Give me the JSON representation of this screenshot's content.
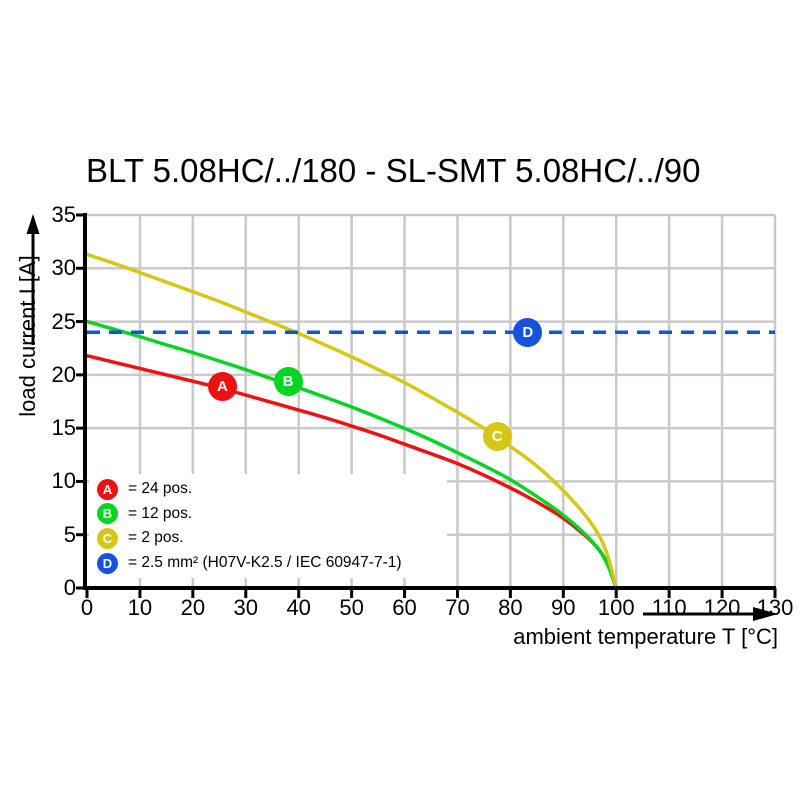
{
  "title": "BLT 5.08HC/../180 - SL-SMT 5.08HC/../90",
  "chart_data": {
    "type": "line",
    "title": "BLT 5.08HC/../180 - SL-SMT 5.08HC/../90",
    "xlabel": "ambient temperature T [°C]",
    "ylabel": "load current I [A]",
    "xlim": [
      0,
      130
    ],
    "ylim": [
      0,
      35
    ],
    "x_ticks": [
      0,
      10,
      20,
      30,
      40,
      50,
      60,
      70,
      80,
      90,
      100,
      110,
      120,
      130
    ],
    "y_ticks": [
      0,
      5,
      10,
      15,
      20,
      25,
      30,
      35
    ],
    "grid": true,
    "grid_color": "#c9c9c9",
    "legend_position": "lower left",
    "x": [
      0,
      5,
      10,
      15,
      20,
      25,
      30,
      35,
      40,
      45,
      50,
      55,
      60,
      65,
      70,
      75,
      80,
      85,
      90,
      95,
      98,
      100
    ],
    "series": [
      {
        "name": "A = 24 pos.",
        "color": "#ee1111",
        "style": "solid",
        "values": [
          21.8,
          21.2,
          20.6,
          20.0,
          19.4,
          18.8,
          18.1,
          17.4,
          16.7,
          16.0,
          15.2,
          14.4,
          13.5,
          12.6,
          11.7,
          10.6,
          9.4,
          8.1,
          6.6,
          4.6,
          2.9,
          0
        ]
      },
      {
        "name": "B = 12 pos.",
        "color": "#00d622",
        "style": "solid",
        "values": [
          25.0,
          24.3,
          23.6,
          22.8,
          22.1,
          21.3,
          20.5,
          19.6,
          18.8,
          17.9,
          17.0,
          16.0,
          15.0,
          13.9,
          12.7,
          11.5,
          10.2,
          8.6,
          6.9,
          4.7,
          2.8,
          0
        ]
      },
      {
        "name": "C = 2 pos.",
        "color": "#d5c714",
        "style": "solid",
        "values": [
          31.3,
          30.5,
          29.6,
          28.7,
          27.8,
          26.9,
          25.9,
          24.9,
          23.9,
          22.8,
          21.7,
          20.5,
          19.3,
          17.9,
          16.5,
          15.0,
          13.3,
          11.5,
          9.2,
          6.4,
          3.9,
          0
        ]
      },
      {
        "name": "D = 2.5 mm² (H07V-K2.5 / IEC 60947-7-1)",
        "color": "#1552dd",
        "style": "dashed",
        "constant": 24
      }
    ],
    "markers": [
      {
        "letter": "A",
        "x": 25.6,
        "y": 18.9,
        "color": "#ee1111"
      },
      {
        "letter": "B",
        "x": 38.0,
        "y": 19.4,
        "color": "#00d622"
      },
      {
        "letter": "C",
        "x": 77.5,
        "y": 14.2,
        "color": "#d5c714"
      },
      {
        "letter": "D",
        "x": 83.3,
        "y": 24.0,
        "color": "#1552dd"
      }
    ]
  },
  "legend": {
    "items": [
      {
        "letter": "A",
        "label": "= 24 pos.",
        "color": "#ee1111"
      },
      {
        "letter": "B",
        "label": "= 12 pos.",
        "color": "#00d622"
      },
      {
        "letter": "C",
        "label": "= 2 pos.",
        "color": "#d5c714"
      },
      {
        "letter": "D",
        "label": "= 2.5 mm² (H07V-K2.5 / IEC 60947-7-1)",
        "color": "#1552dd"
      }
    ]
  }
}
